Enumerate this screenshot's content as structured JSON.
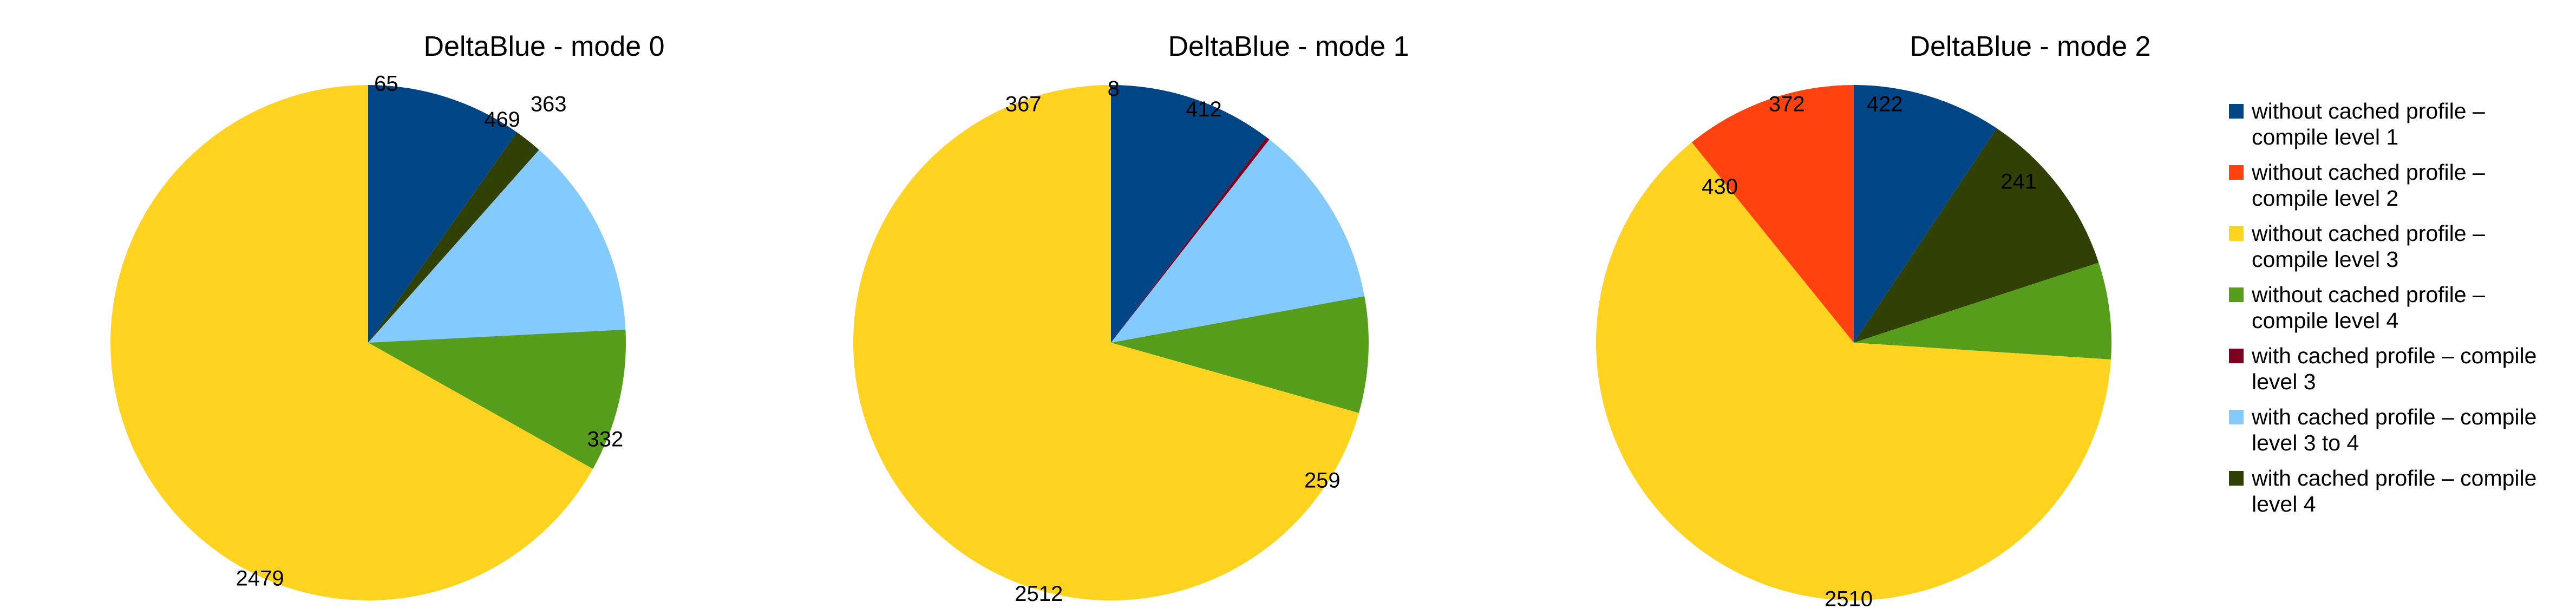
{
  "chart_data": [
    {
      "type": "pie",
      "title": "DeltaBlue - mode 0",
      "series_order": [
        "without cached profile – compile level 1",
        "with cached profile – compile level 4",
        "with cached profile – compile level 3 to 4",
        "without cached profile – compile level 4",
        "without cached profile – compile level 3"
      ],
      "values": [
        363,
        65,
        469,
        332,
        2479
      ],
      "labels": [
        "363",
        "65",
        "469",
        "332",
        "2479"
      ]
    },
    {
      "type": "pie",
      "title": "DeltaBlue - mode 1",
      "series_order": [
        "without cached profile – compile level 1",
        "with cached profile – compile level 3",
        "with cached profile – compile level 3 to 4",
        "without cached profile – compile level 4",
        "without cached profile – compile level 3"
      ],
      "values": [
        367,
        8,
        412,
        259,
        2512
      ],
      "labels": [
        "367",
        "8",
        "412",
        "259",
        "2512"
      ]
    },
    {
      "type": "pie",
      "title": "DeltaBlue - mode 2",
      "series_order": [
        "without cached profile – compile level 1",
        "with cached profile – compile level 4",
        "without cached profile – compile level 4",
        "without cached profile – compile level 3",
        "without cached profile – compile level 2"
      ],
      "values": [
        372,
        422,
        241,
        2510,
        430
      ],
      "labels": [
        "372",
        "422",
        "241",
        "2510",
        "430"
      ]
    }
  ],
  "legend": {
    "placement": "right",
    "items": [
      {
        "name": "without cached profile – compile level 1",
        "line1": "without cached profile –",
        "line2": "compile level 1",
        "color": "#004586"
      },
      {
        "name": "without cached profile – compile level 2",
        "line1": "without cached profile –",
        "line2": "compile level 2",
        "color": "#ff420e"
      },
      {
        "name": "without cached profile – compile level 3",
        "line1": "without cached profile –",
        "line2": "compile level 3",
        "color": "#ffd320"
      },
      {
        "name": "without cached profile – compile level 4",
        "line1": "without cached profile –",
        "line2": "compile level 4",
        "color": "#579d1c"
      },
      {
        "name": "with cached profile – compile level 3",
        "line1": "with cached profile – compile",
        "line2": "level 3",
        "color": "#7e0021"
      },
      {
        "name": "with cached profile – compile level 3 to 4",
        "line1": "with cached profile – compile",
        "line2": "level 3 to 4",
        "color": "#83caff"
      },
      {
        "name": "with cached profile – compile level 4",
        "line1": "with cached profile – compile",
        "line2": "level 4",
        "color": "#314004"
      }
    ]
  }
}
